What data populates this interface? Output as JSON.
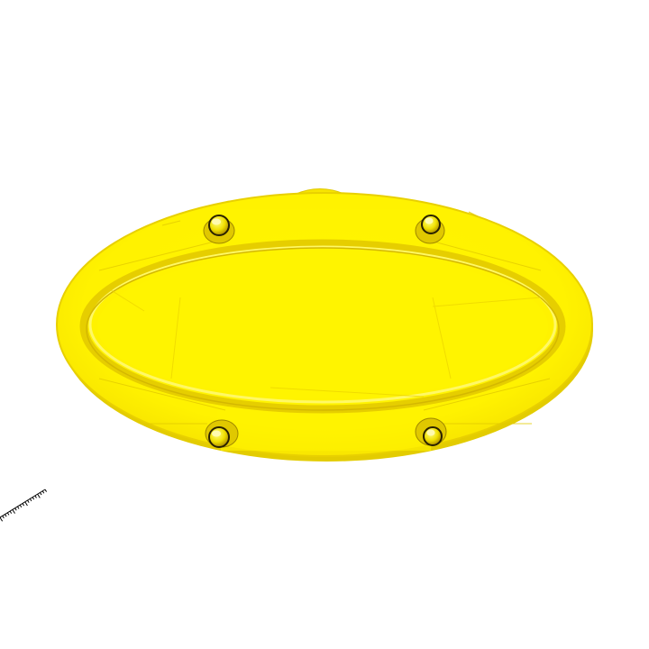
{
  "viewport": {
    "background": "#ffffff"
  },
  "model": {
    "shape": "oval-plate",
    "color_main": "#fff200",
    "color_light": "#fff833",
    "color_shade": "#f2dc00",
    "color_dark": "#d9c000",
    "color_edge": "#c8a800",
    "pins": 4
  },
  "scale_ruler": {
    "color": "#000000"
  }
}
